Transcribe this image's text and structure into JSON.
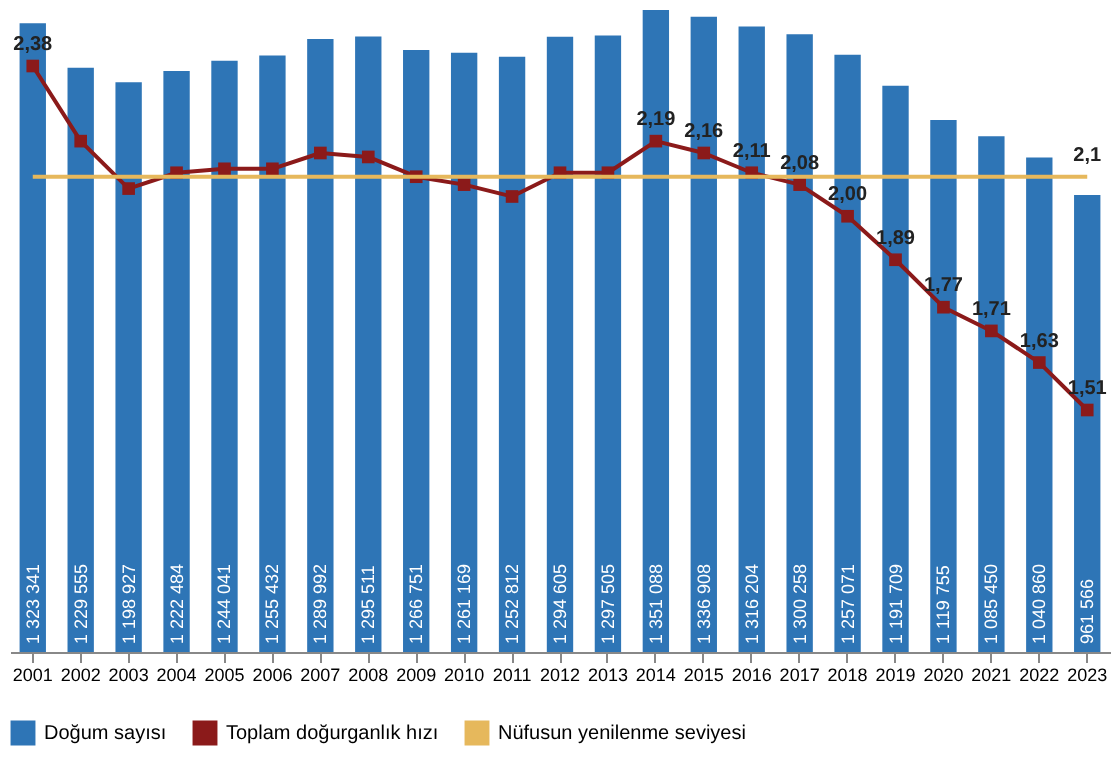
{
  "chart_data": {
    "type": "bar",
    "categories": [
      "2001",
      "2002",
      "2003",
      "2004",
      "2005",
      "2006",
      "2007",
      "2008",
      "2009",
      "2010",
      "2011",
      "2012",
      "2013",
      "2014",
      "2015",
      "2016",
      "2017",
      "2018",
      "2019",
      "2020",
      "2021",
      "2022",
      "2023"
    ],
    "tick_labels": "x",
    "legend": "bottom",
    "series": [
      {
        "name": "Doğum sayısı",
        "color": "#2e75b6",
        "values": [
          1323341,
          1229555,
          1198927,
          1222484,
          1244041,
          1255432,
          1289992,
          1295511,
          1266751,
          1261169,
          1252812,
          1294605,
          1297505,
          1351088,
          1336908,
          1316204,
          1300258,
          1257071,
          1191709,
          1119755,
          1085450,
          1040860,
          961566
        ],
        "value_labels": [
          "1 323 341",
          "1 229 555",
          "1 198 927",
          "1 222 484",
          "1 244 041",
          "1 255 432",
          "1 289 992",
          "1 295 511",
          "1 266 751",
          "1 261 169",
          "1 252 812",
          "1 294 605",
          "1 297 505",
          "1 351 088",
          "1 336 908",
          "1 316 204",
          "1 300 258",
          "1 257 071",
          "1 191 709",
          "1 119 755",
          "1 085 450",
          "1 040 860",
          "961 566"
        ]
      },
      {
        "name": "Toplam doğurganlık hızı",
        "type": "line",
        "axis": "y2",
        "marker": "square",
        "color": "#8b1a1a",
        "values": [
          2.38,
          2.19,
          2.07,
          2.11,
          2.12,
          2.12,
          2.16,
          2.15,
          2.1,
          2.08,
          2.05,
          2.11,
          2.11,
          2.19,
          2.16,
          2.11,
          2.08,
          2.0,
          1.89,
          1.77,
          1.71,
          1.63,
          1.51
        ],
        "value_labels": [
          "2,38",
          null,
          null,
          null,
          null,
          null,
          null,
          null,
          null,
          null,
          null,
          null,
          null,
          "2,19",
          "2,16",
          "2,11",
          "2,08",
          "2,00",
          "1,89",
          "1,77",
          "1,71",
          "1,63",
          "1,51"
        ]
      },
      {
        "name": "Nüfusun yenilenme seviyesi",
        "type": "line",
        "axis": "y2",
        "marker": "none",
        "color": "#e6b85c",
        "values": [
          2.1,
          2.1,
          2.1,
          2.1,
          2.1,
          2.1,
          2.1,
          2.1,
          2.1,
          2.1,
          2.1,
          2.1,
          2.1,
          2.1,
          2.1,
          2.1,
          2.1,
          2.1,
          2.1,
          2.1,
          2.1,
          2.1,
          2.1
        ],
        "value_labels": [
          null,
          null,
          null,
          null,
          null,
          null,
          null,
          null,
          null,
          null,
          null,
          null,
          null,
          null,
          null,
          null,
          null,
          null,
          null,
          null,
          null,
          null,
          "2,1"
        ]
      }
    ]
  }
}
